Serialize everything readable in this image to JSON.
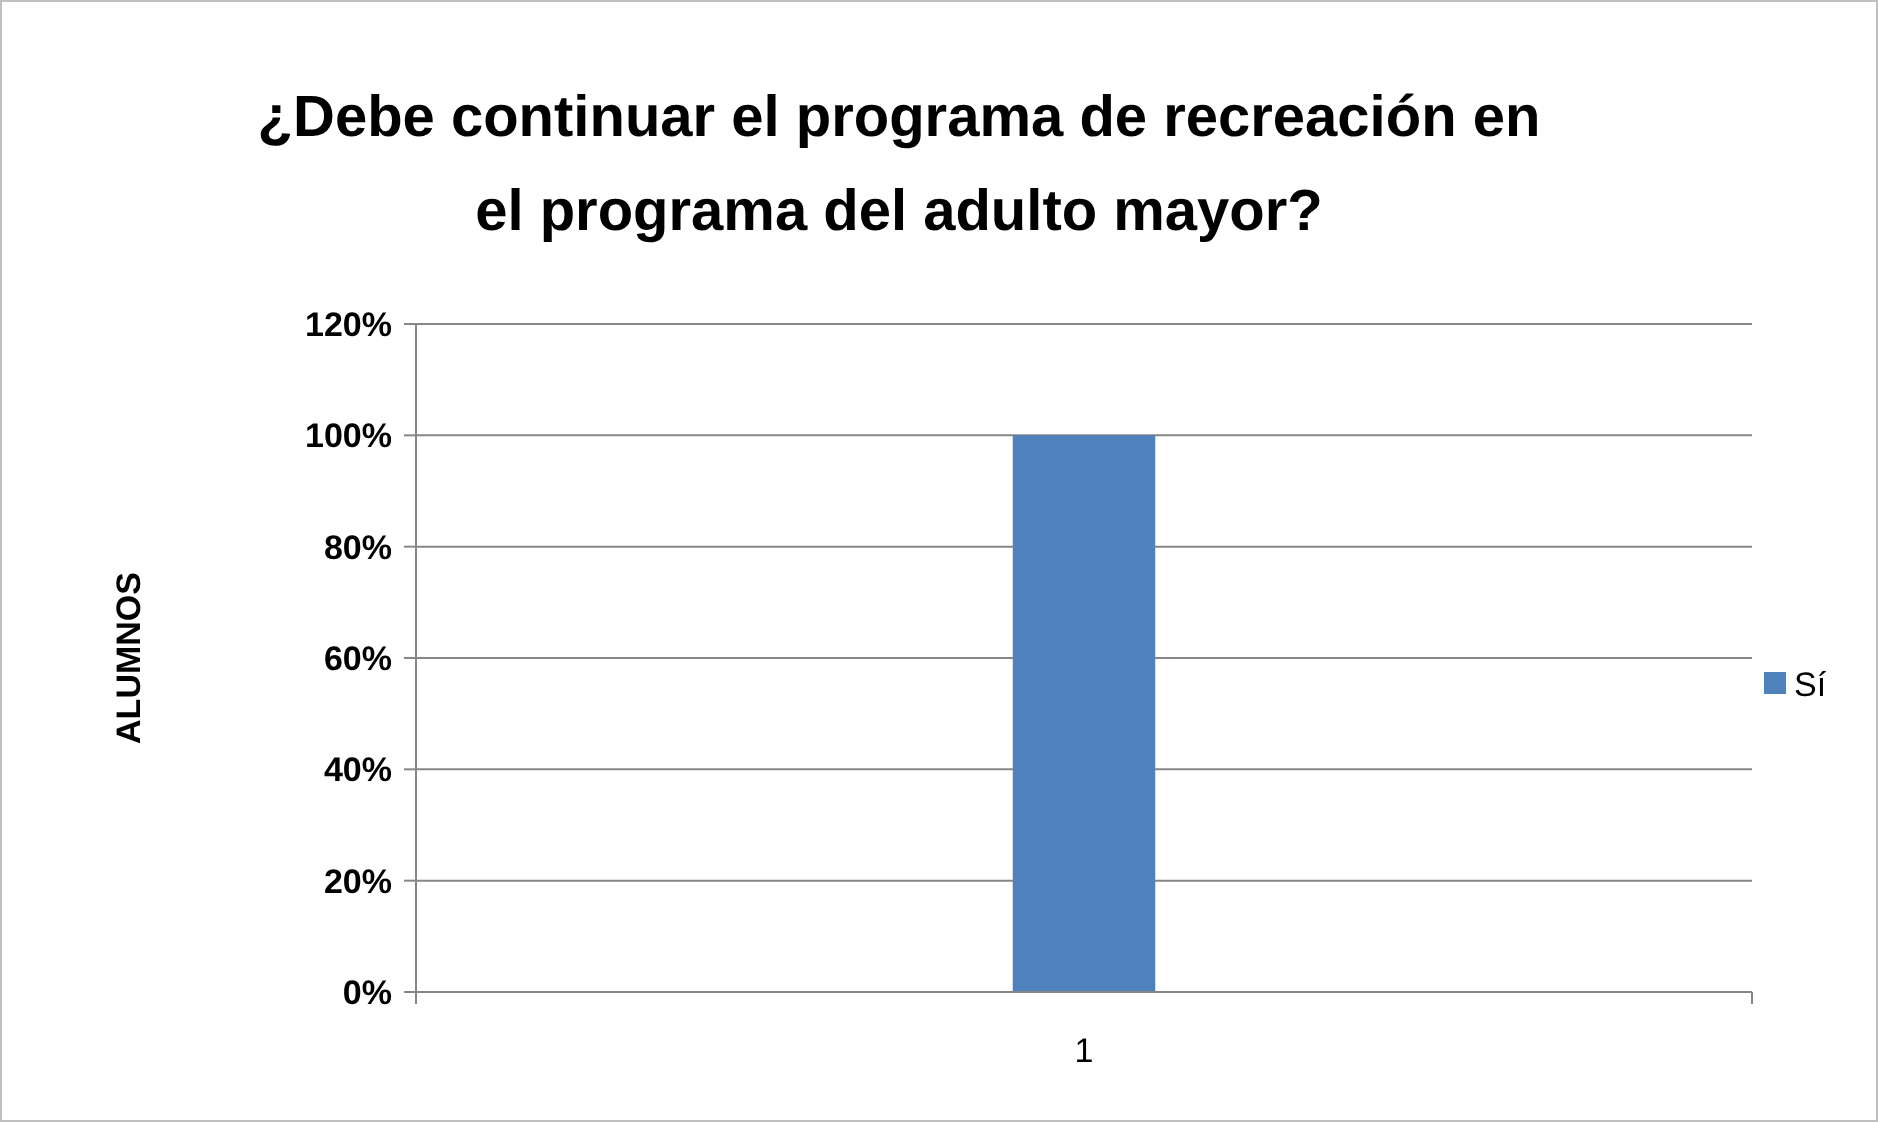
{
  "chart_data": {
    "type": "bar",
    "title": "¿Debe continuar el programa de recreación en el programa del adulto mayor?",
    "ylabel": "ALUMNOS",
    "categories": [
      "1"
    ],
    "series": [
      {
        "name": "Sí",
        "color": "#4f81bd",
        "values": [
          100
        ]
      }
    ],
    "ylim": [
      0,
      120
    ],
    "yticks": [
      {
        "value": 0,
        "label": "0%"
      },
      {
        "value": 20,
        "label": "20%"
      },
      {
        "value": 40,
        "label": "40%"
      },
      {
        "value": 60,
        "label": "60%"
      },
      {
        "value": 80,
        "label": "80%"
      },
      {
        "value": 100,
        "label": "100%"
      },
      {
        "value": 120,
        "label": "120%"
      }
    ],
    "grid": "y",
    "legend": "right"
  }
}
